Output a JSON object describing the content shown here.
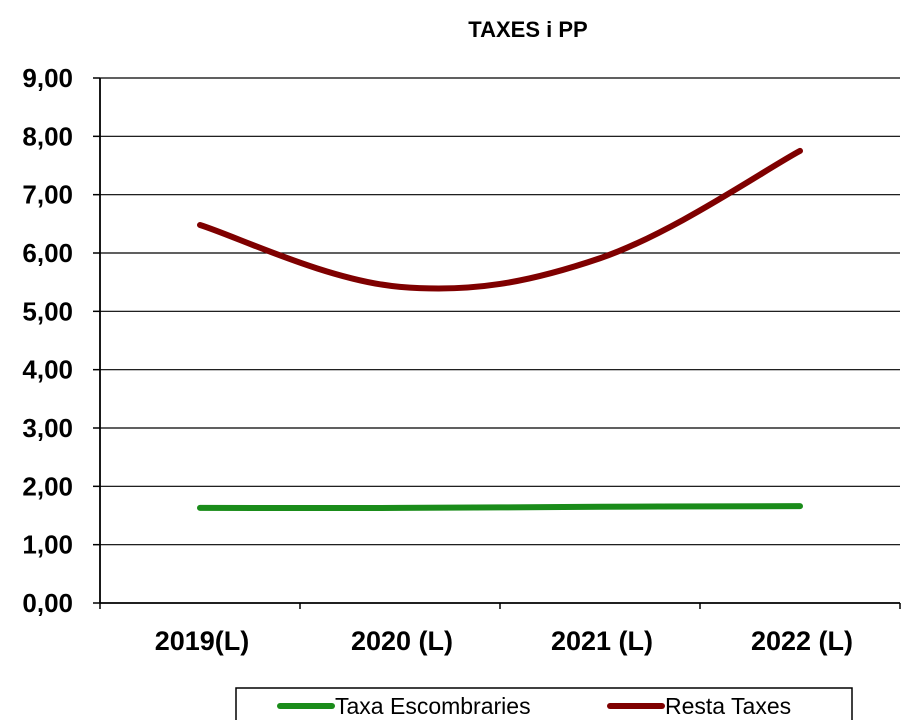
{
  "chart_data": {
    "type": "line",
    "title": "TAXES i PP",
    "categories": [
      "2019(L)",
      "2020 (L)",
      "2021 (L)",
      "2022 (L)"
    ],
    "y_tick_labels": [
      "0,00",
      "1,00",
      "2,00",
      "3,00",
      "4,00",
      "5,00",
      "6,00",
      "7,00",
      "8,00",
      "9,00"
    ],
    "ylim": [
      0,
      9
    ],
    "grid": true,
    "legend_position": "bottom",
    "series": [
      {
        "name": "Taxa Escombraries",
        "values": [
          1.63,
          1.63,
          1.65,
          1.66
        ],
        "color": "#1a8c1a"
      },
      {
        "name": "Resta Taxes",
        "values": [
          6.48,
          5.42,
          5.91,
          7.75
        ],
        "color": "#7f0000"
      }
    ]
  }
}
